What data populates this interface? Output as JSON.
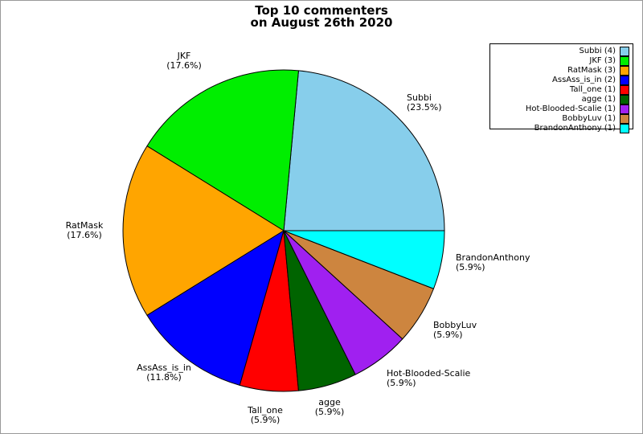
{
  "chart_data": {
    "type": "pie",
    "title_line1": "Top 10 commenters",
    "title_line2": "on August 26th 2020",
    "start_angle_deg": 0,
    "direction": "counterclockwise",
    "legend_position": "upper right",
    "slice_edge_color": "#000000",
    "series": [
      {
        "name": "Subbi",
        "count": 4,
        "percent": 23.5,
        "color": "#87CEEB"
      },
      {
        "name": "JKF",
        "count": 3,
        "percent": 17.6,
        "color": "#00EE00"
      },
      {
        "name": "RatMask",
        "count": 3,
        "percent": 17.6,
        "color": "#FFA500"
      },
      {
        "name": "AssAss_is_in",
        "count": 2,
        "percent": 11.8,
        "color": "#0000FF"
      },
      {
        "name": "Tall_one",
        "count": 1,
        "percent": 5.9,
        "color": "#FF0000"
      },
      {
        "name": "agge",
        "count": 1,
        "percent": 5.9,
        "color": "#006400"
      },
      {
        "name": "Hot-Blooded-Scalie",
        "count": 1,
        "percent": 5.9,
        "color": "#A020F0"
      },
      {
        "name": "BobbyLuv",
        "count": 1,
        "percent": 5.9,
        "color": "#CD853F"
      },
      {
        "name": "BrandonAnthony",
        "count": 1,
        "percent": 5.9,
        "color": "#00FFFF"
      }
    ]
  }
}
